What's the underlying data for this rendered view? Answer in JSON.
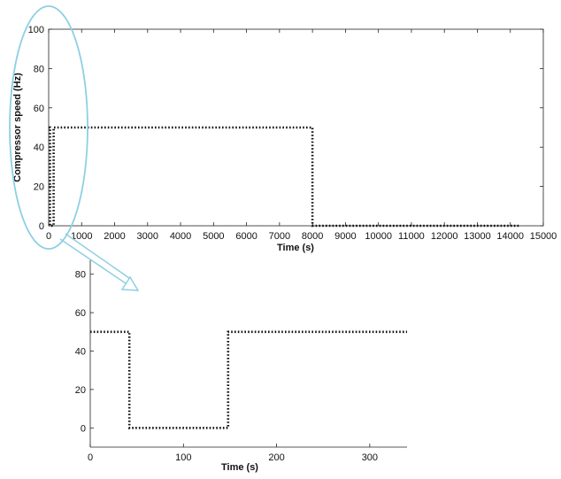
{
  "colors": {
    "trace": "#111111",
    "frame": "#222222",
    "callout": "#8ecfe3"
  },
  "chart_data": [
    {
      "type": "line",
      "xlabel": "Time (s)",
      "ylabel": "Compressor speed (Hz)",
      "xlim": [
        0,
        15000
      ],
      "ylim": [
        0,
        100
      ],
      "x_ticks": [
        0,
        1000,
        2000,
        3000,
        4000,
        5000,
        6000,
        7000,
        8000,
        9000,
        10000,
        11000,
        12000,
        13000,
        14000,
        15000
      ],
      "y_ticks": [
        0,
        20,
        40,
        60,
        80,
        100
      ],
      "grid": false,
      "series": [
        {
          "x": [
            0,
            40,
            40,
            150,
            150,
            8000,
            8000,
            14300
          ],
          "y": [
            50,
            50,
            0,
            0,
            50,
            50,
            0,
            0
          ]
        }
      ]
    },
    {
      "type": "line",
      "xlabel": "Time (s)",
      "ylabel": "",
      "xlim": [
        0,
        340
      ],
      "ylim": [
        -10,
        90
      ],
      "x_ticks": [
        0,
        100,
        200,
        300
      ],
      "y_ticks": [
        0,
        20,
        40,
        60,
        80
      ],
      "grid": false,
      "series": [
        {
          "x": [
            0,
            42,
            42,
            148,
            148,
            340
          ],
          "y": [
            50,
            50,
            0,
            0,
            50,
            50
          ]
        }
      ]
    }
  ]
}
